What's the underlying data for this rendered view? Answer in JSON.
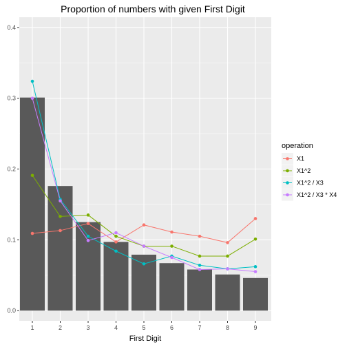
{
  "chart_data": {
    "type": "bar",
    "title": "Proportion of numbers with given First Digit",
    "xlabel": "First Digit",
    "ylabel": "",
    "categories": [
      "1",
      "2",
      "3",
      "4",
      "5",
      "6",
      "7",
      "8",
      "9"
    ],
    "bars": {
      "values": [
        0.301,
        0.176,
        0.125,
        0.097,
        0.079,
        0.067,
        0.058,
        0.051,
        0.046
      ],
      "color": "#595959"
    },
    "series": [
      {
        "name": "X1",
        "type": "line",
        "color": "#F8766D",
        "values": [
          0.109,
          0.113,
          0.123,
          0.097,
          0.121,
          0.111,
          0.105,
          0.096,
          0.13
        ]
      },
      {
        "name": "X1^2",
        "type": "line",
        "color": "#7CAE00",
        "values": [
          0.191,
          0.133,
          0.135,
          0.105,
          0.091,
          0.091,
          0.077,
          0.077,
          0.101
        ]
      },
      {
        "name": "X1^2 / X3",
        "type": "line",
        "color": "#00BFC4",
        "values": [
          0.324,
          0.157,
          0.105,
          0.084,
          0.066,
          0.077,
          0.064,
          0.059,
          0.062
        ]
      },
      {
        "name": "X1^2 / X3 * X4",
        "type": "line",
        "color": "#C77CFF",
        "values": [
          0.3,
          0.155,
          0.099,
          0.11,
          0.091,
          0.075,
          0.058,
          0.059,
          0.055
        ]
      }
    ],
    "ylim": [
      -0.0145,
      0.4145
    ],
    "yticks": [
      0.0,
      0.1,
      0.2,
      0.3,
      0.4
    ],
    "ytick_labels": [
      "0.0",
      "0.1",
      "0.2",
      "0.3",
      "0.4"
    ],
    "legend": {
      "title": "operation",
      "position": "right"
    },
    "grid": true,
    "panel_background": "#EBEBEB",
    "grid_color": "#FFFFFF"
  }
}
